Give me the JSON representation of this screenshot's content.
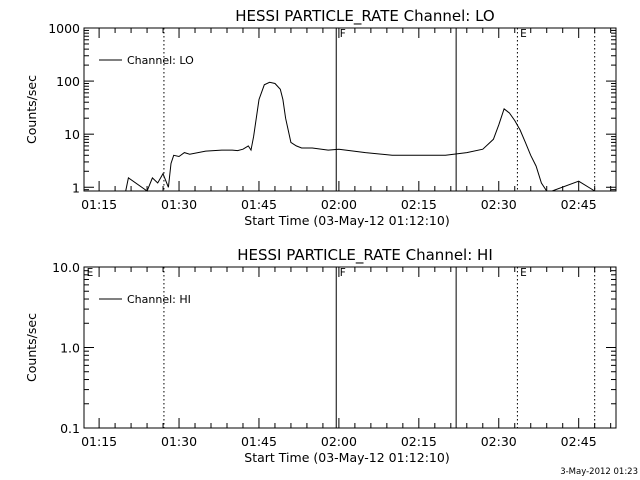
{
  "chart_data": [
    {
      "type": "line",
      "title": "HESSI PARTICLE_RATE Channel: LO",
      "xlabel": "Start Time (03-May-12 01:12:10)",
      "ylabel": "Counts/sec",
      "yscale": "log",
      "ylim": [
        0.85,
        1000
      ],
      "y_ticks": [
        1,
        10,
        100,
        1000
      ],
      "y_tick_labels": [
        "1",
        "10",
        "100",
        "1000"
      ],
      "xlim": [
        "01:12:10",
        "02:52:00"
      ],
      "x_tick_labels": [
        "01:15",
        "01:30",
        "01:45",
        "02:00",
        "02:15",
        "02:30",
        "02:45"
      ],
      "x_ticks": [
        "01:15",
        "01:30",
        "01:45",
        "02:00",
        "02:15",
        "02:30",
        "02:45"
      ],
      "grid": false,
      "legend": "upper-left",
      "series": [
        {
          "name": "Channel: LO",
          "x": [
            "01:20",
            "01:20:30",
            "01:24",
            "01:25",
            "01:26",
            "01:27",
            "01:28",
            "01:28:30",
            "01:29",
            "01:30",
            "01:31",
            "01:32",
            "01:35",
            "01:38",
            "01:40",
            "01:41",
            "01:42",
            "01:43",
            "01:43:30",
            "01:44",
            "01:45",
            "01:46",
            "01:47",
            "01:48",
            "01:49",
            "01:49:30",
            "01:50",
            "01:51",
            "01:52",
            "01:53",
            "01:55",
            "01:58",
            "02:00",
            "02:05",
            "02:10",
            "02:15",
            "02:20",
            "02:24",
            "02:27",
            "02:29",
            "02:30",
            "02:31",
            "02:32",
            "02:33",
            "02:34",
            "02:35",
            "02:36",
            "02:37",
            "02:38",
            "02:39",
            "02:40",
            "02:45",
            "02:48"
          ],
          "values": [
            0.85,
            1.5,
            0.85,
            1.5,
            1.2,
            1.8,
            1.0,
            2.8,
            4.0,
            3.8,
            4.5,
            4.2,
            4.8,
            5.0,
            5.0,
            4.9,
            5.2,
            6.0,
            5.0,
            9.0,
            45,
            85,
            95,
            90,
            70,
            45,
            20,
            7.0,
            6.0,
            5.5,
            5.5,
            5.0,
            5.2,
            4.5,
            4.0,
            4.0,
            4.0,
            4.5,
            5.2,
            8.0,
            15,
            30,
            25,
            18,
            12,
            7.0,
            4.0,
            2.5,
            1.2,
            0.85,
            0.85,
            1.3,
            0.85
          ]
        }
      ],
      "annotations": {
        "markers": [
          "F",
          "E"
        ],
        "dotted_lines_at": [
          "01:27:10",
          "02:33:30",
          "02:48:00"
        ],
        "solid_lines_at": [
          "01:59:30",
          "02:22:00"
        ]
      },
      "legend_entries": [
        "Channel: LO"
      ]
    },
    {
      "type": "line",
      "title": "HESSI PARTICLE_RATE Channel: HI",
      "xlabel": "Start Time (03-May-12 01:12:10)",
      "ylabel": "Counts/sec",
      "yscale": "log",
      "ylim": [
        0.1,
        10
      ],
      "y_ticks": [
        0.1,
        1,
        10
      ],
      "y_tick_labels": [
        "0.1",
        "1.0",
        "10.0"
      ],
      "xlim": [
        "01:12:10",
        "02:52:00"
      ],
      "x_tick_labels": [
        "01:15",
        "01:30",
        "01:45",
        "02:00",
        "02:15",
        "02:30",
        "02:45"
      ],
      "x_ticks": [
        "01:15",
        "01:30",
        "01:45",
        "02:00",
        "02:15",
        "02:30",
        "02:45"
      ],
      "grid": false,
      "legend": "upper-left",
      "series": [
        {
          "name": "Channel: HI",
          "x": [],
          "values": []
        }
      ],
      "annotations": {
        "markers": [
          "E",
          "F",
          "E"
        ],
        "dotted_lines_at": [
          "01:27:10",
          "02:33:30",
          "02:48:00"
        ],
        "solid_lines_at": [
          "01:59:30",
          "02:22:00"
        ]
      },
      "legend_entries": [
        "Channel: HI"
      ]
    }
  ],
  "footer": "3-May-2012 01:23"
}
